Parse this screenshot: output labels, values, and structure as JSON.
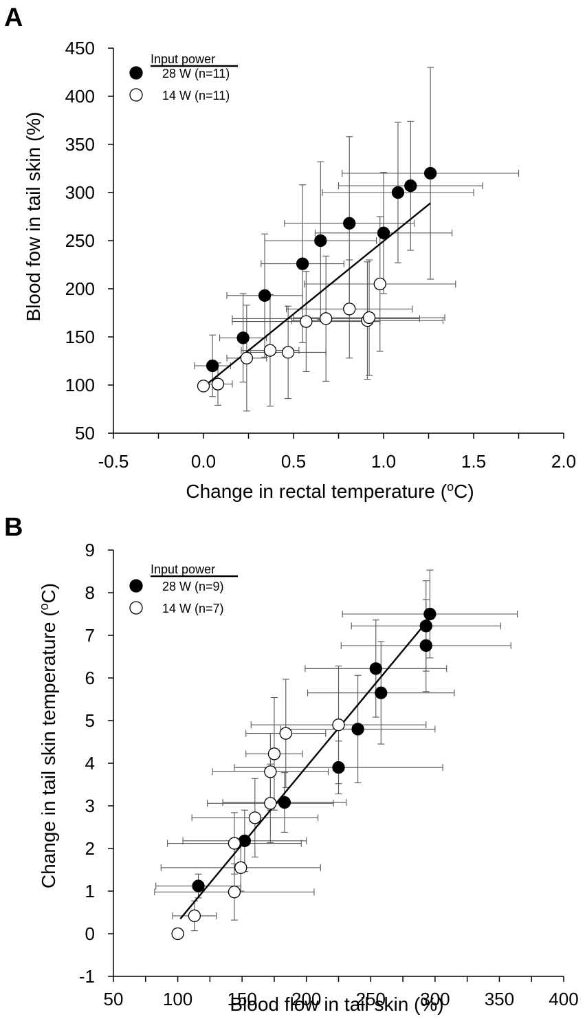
{
  "chart_data": [
    {
      "panel": "A",
      "type": "scatter",
      "xlabel": "Change in rectal temperature (",
      "xlabel_sup": "o",
      "xlabel_end": "C)",
      "ylabel": "Blood fow in tail skin (%)",
      "xlim": [
        -0.5,
        2.0
      ],
      "ylim": [
        50,
        450
      ],
      "x_ticks": [
        -0.5,
        0.0,
        0.5,
        1.0,
        1.5,
        2.0
      ],
      "x_tick_labels": [
        "-0.5",
        "0.0",
        "0.5",
        "1.0",
        "1.5",
        "2.0"
      ],
      "y_ticks": [
        50,
        100,
        150,
        200,
        250,
        300,
        350,
        400,
        450
      ],
      "y_tick_labels": [
        "50",
        "100",
        "150",
        "200",
        "250",
        "300",
        "350",
        "400",
        "450"
      ],
      "legend_title": "Input power",
      "series": [
        {
          "name": "28 W (n=11)",
          "fill": "#000000",
          "points": [
            {
              "x": 0.05,
              "y": 120,
              "xerr": 0.1,
              "yerr": 32
            },
            {
              "x": 0.22,
              "y": 149,
              "xerr": 0.13,
              "yerr": 46
            },
            {
              "x": 0.34,
              "y": 193,
              "xerr": 0.21,
              "yerr": 64
            },
            {
              "x": 0.55,
              "y": 226,
              "xerr": 0.23,
              "yerr": 82
            },
            {
              "x": 0.65,
              "y": 250,
              "xerr": 0.31,
              "yerr": 82
            },
            {
              "x": 0.81,
              "y": 268,
              "xerr": 0.36,
              "yerr": 90
            },
            {
              "x": 1.0,
              "y": 258,
              "xerr": 0.38,
              "yerr": 63
            },
            {
              "x": 1.08,
              "y": 300,
              "xerr": 0.42,
              "yerr": 73
            },
            {
              "x": 1.15,
              "y": 307,
              "xerr": 0.4,
              "yerr": 67
            },
            {
              "x": 1.26,
              "y": 320,
              "xerr": 0.49,
              "yerr": 110
            }
          ]
        },
        {
          "name": "14 W (n=11)",
          "fill": "#ffffff",
          "points": [
            {
              "x": 0.0,
              "y": 99,
              "xerr": 0.0,
              "yerr": 0
            },
            {
              "x": 0.08,
              "y": 101,
              "xerr": 0.08,
              "yerr": 22
            },
            {
              "x": 0.24,
              "y": 128,
              "xerr": 0.11,
              "yerr": 55
            },
            {
              "x": 0.37,
              "y": 136,
              "xerr": 0.16,
              "yerr": 58
            },
            {
              "x": 0.47,
              "y": 134,
              "xerr": 0.21,
              "yerr": 48
            },
            {
              "x": 0.57,
              "y": 166,
              "xerr": 0.41,
              "yerr": 52
            },
            {
              "x": 0.68,
              "y": 169,
              "xerr": 0.52,
              "yerr": 65
            },
            {
              "x": 0.81,
              "y": 179,
              "xerr": 0.35,
              "yerr": 51
            },
            {
              "x": 0.91,
              "y": 167,
              "xerr": 0.42,
              "yerr": 61
            },
            {
              "x": 0.92,
              "y": 170,
              "xerr": 0.42,
              "yerr": 60
            },
            {
              "x": 0.98,
              "y": 205,
              "xerr": 0.42,
              "yerr": 70
            }
          ]
        }
      ],
      "fit_line": {
        "x": [
          0.02,
          1.26
        ],
        "y": [
          101,
          289
        ]
      }
    },
    {
      "panel": "B",
      "type": "scatter",
      "xlabel": "Blood flow in tail skin (%)",
      "ylabel": "Change in tail skin temperature (",
      "ylabel_sup": "o",
      "ylabel_end": "C)",
      "xlim": [
        50,
        400
      ],
      "ylim": [
        -1,
        9
      ],
      "x_ticks": [
        50,
        100,
        150,
        200,
        250,
        300,
        350,
        400
      ],
      "x_tick_labels": [
        "50",
        "100",
        "150",
        "200",
        "250",
        "300",
        "350",
        "400"
      ],
      "y_ticks": [
        -1,
        0,
        1,
        2,
        3,
        4,
        5,
        6,
        7,
        8,
        9
      ],
      "y_tick_labels": [
        "-1",
        "0",
        "1",
        "2",
        "3",
        "4",
        "5",
        "6",
        "7",
        "8",
        "9"
      ],
      "legend_title": "Input power",
      "series": [
        {
          "name": "28 W (n=9)",
          "fill": "#000000",
          "points": [
            {
              "x": 116,
              "y": 1.12,
              "xerr": 33,
              "yerr": 0.28
            },
            {
              "x": 152,
              "y": 2.18,
              "xerr": 48,
              "yerr": 0.72
            },
            {
              "x": 183,
              "y": 3.08,
              "xerr": 48,
              "yerr": 0.7
            },
            {
              "x": 225,
              "y": 3.9,
              "xerr": 81,
              "yerr": 0.62
            },
            {
              "x": 240,
              "y": 4.8,
              "xerr": 60,
              "yerr": 1.26
            },
            {
              "x": 254,
              "y": 6.22,
              "xerr": 55,
              "yerr": 1.14
            },
            {
              "x": 258,
              "y": 5.65,
              "xerr": 57,
              "yerr": 1.2
            },
            {
              "x": 293,
              "y": 7.22,
              "xerr": 58,
              "yerr": 1.06
            },
            {
              "x": 293,
              "y": 6.76,
              "xerr": 66,
              "yerr": 1.08
            },
            {
              "x": 296,
              "y": 7.5,
              "xerr": 68,
              "yerr": 1.03
            }
          ]
        },
        {
          "name": "14 W (n=7)",
          "fill": "#ffffff",
          "points": [
            {
              "x": 100,
              "y": 0.0,
              "xerr": 0,
              "yerr": 0
            },
            {
              "x": 113,
              "y": 0.42,
              "xerr": 17,
              "yerr": 0.35
            },
            {
              "x": 144,
              "y": 0.98,
              "xerr": 62,
              "yerr": 0.66
            },
            {
              "x": 149,
              "y": 1.55,
              "xerr": 62,
              "yerr": 0.55
            },
            {
              "x": 144,
              "y": 2.12,
              "xerr": 52,
              "yerr": 0.72
            },
            {
              "x": 160,
              "y": 2.72,
              "xerr": 49,
              "yerr": 0.92
            },
            {
              "x": 172,
              "y": 3.06,
              "xerr": 49,
              "yerr": 0.92
            },
            {
              "x": 172,
              "y": 3.8,
              "xerr": 45,
              "yerr": 0.9
            },
            {
              "x": 175,
              "y": 4.22,
              "xerr": 22,
              "yerr": 1.32
            },
            {
              "x": 184,
              "y": 4.7,
              "xerr": 31,
              "yerr": 1.27
            },
            {
              "x": 225,
              "y": 4.9,
              "xerr": 68,
              "yerr": 1.38
            }
          ]
        }
      ],
      "fit_line": {
        "x": [
          102,
          298
        ],
        "y": [
          0.35,
          7.48
        ]
      }
    }
  ]
}
